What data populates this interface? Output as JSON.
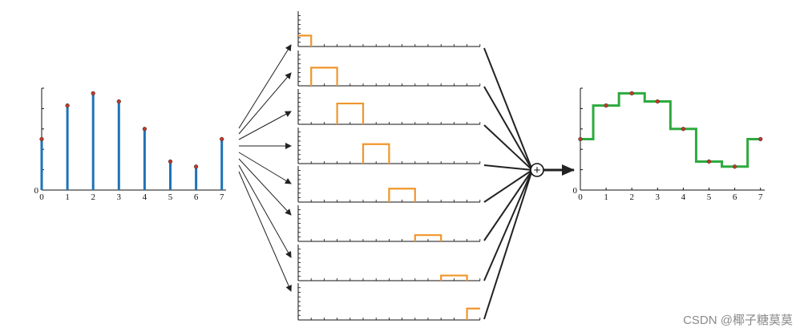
{
  "colors": {
    "stem": "#1f73b7",
    "dot": "#c0392b",
    "pulse": "#f0962a",
    "recon": "#2eaa3f",
    "axis": "#111111",
    "arrow": "#222222"
  },
  "chart_data": [
    {
      "type": "stem",
      "x": [
        0,
        1,
        2,
        3,
        4,
        5,
        6,
        7
      ],
      "values": [
        0.5,
        0.83,
        0.95,
        0.87,
        0.6,
        0.28,
        0.23,
        0.5
      ],
      "xticks": [
        "0",
        "1",
        "2",
        "3",
        "4",
        "5",
        "6",
        "7"
      ],
      "origin_label": "0",
      "ylim": [
        0,
        1
      ]
    },
    {
      "type": "pulse-stack",
      "pulse_heights": [
        0.5,
        0.83,
        0.95,
        0.87,
        0.6,
        0.28,
        0.23,
        0.5
      ],
      "ylim": [
        0,
        1
      ]
    },
    {
      "type": "step",
      "x": [
        0,
        1,
        2,
        3,
        4,
        5,
        6,
        7
      ],
      "values": [
        0.5,
        0.83,
        0.95,
        0.87,
        0.6,
        0.28,
        0.23,
        0.5
      ],
      "xticks": [
        "0",
        "1",
        "2",
        "3",
        "4",
        "5",
        "6",
        "7"
      ],
      "origin_label": "0",
      "ylim": [
        0,
        1
      ]
    }
  ],
  "summation_symbol": "+",
  "watermark": "CSDN @椰子糖莫莫"
}
